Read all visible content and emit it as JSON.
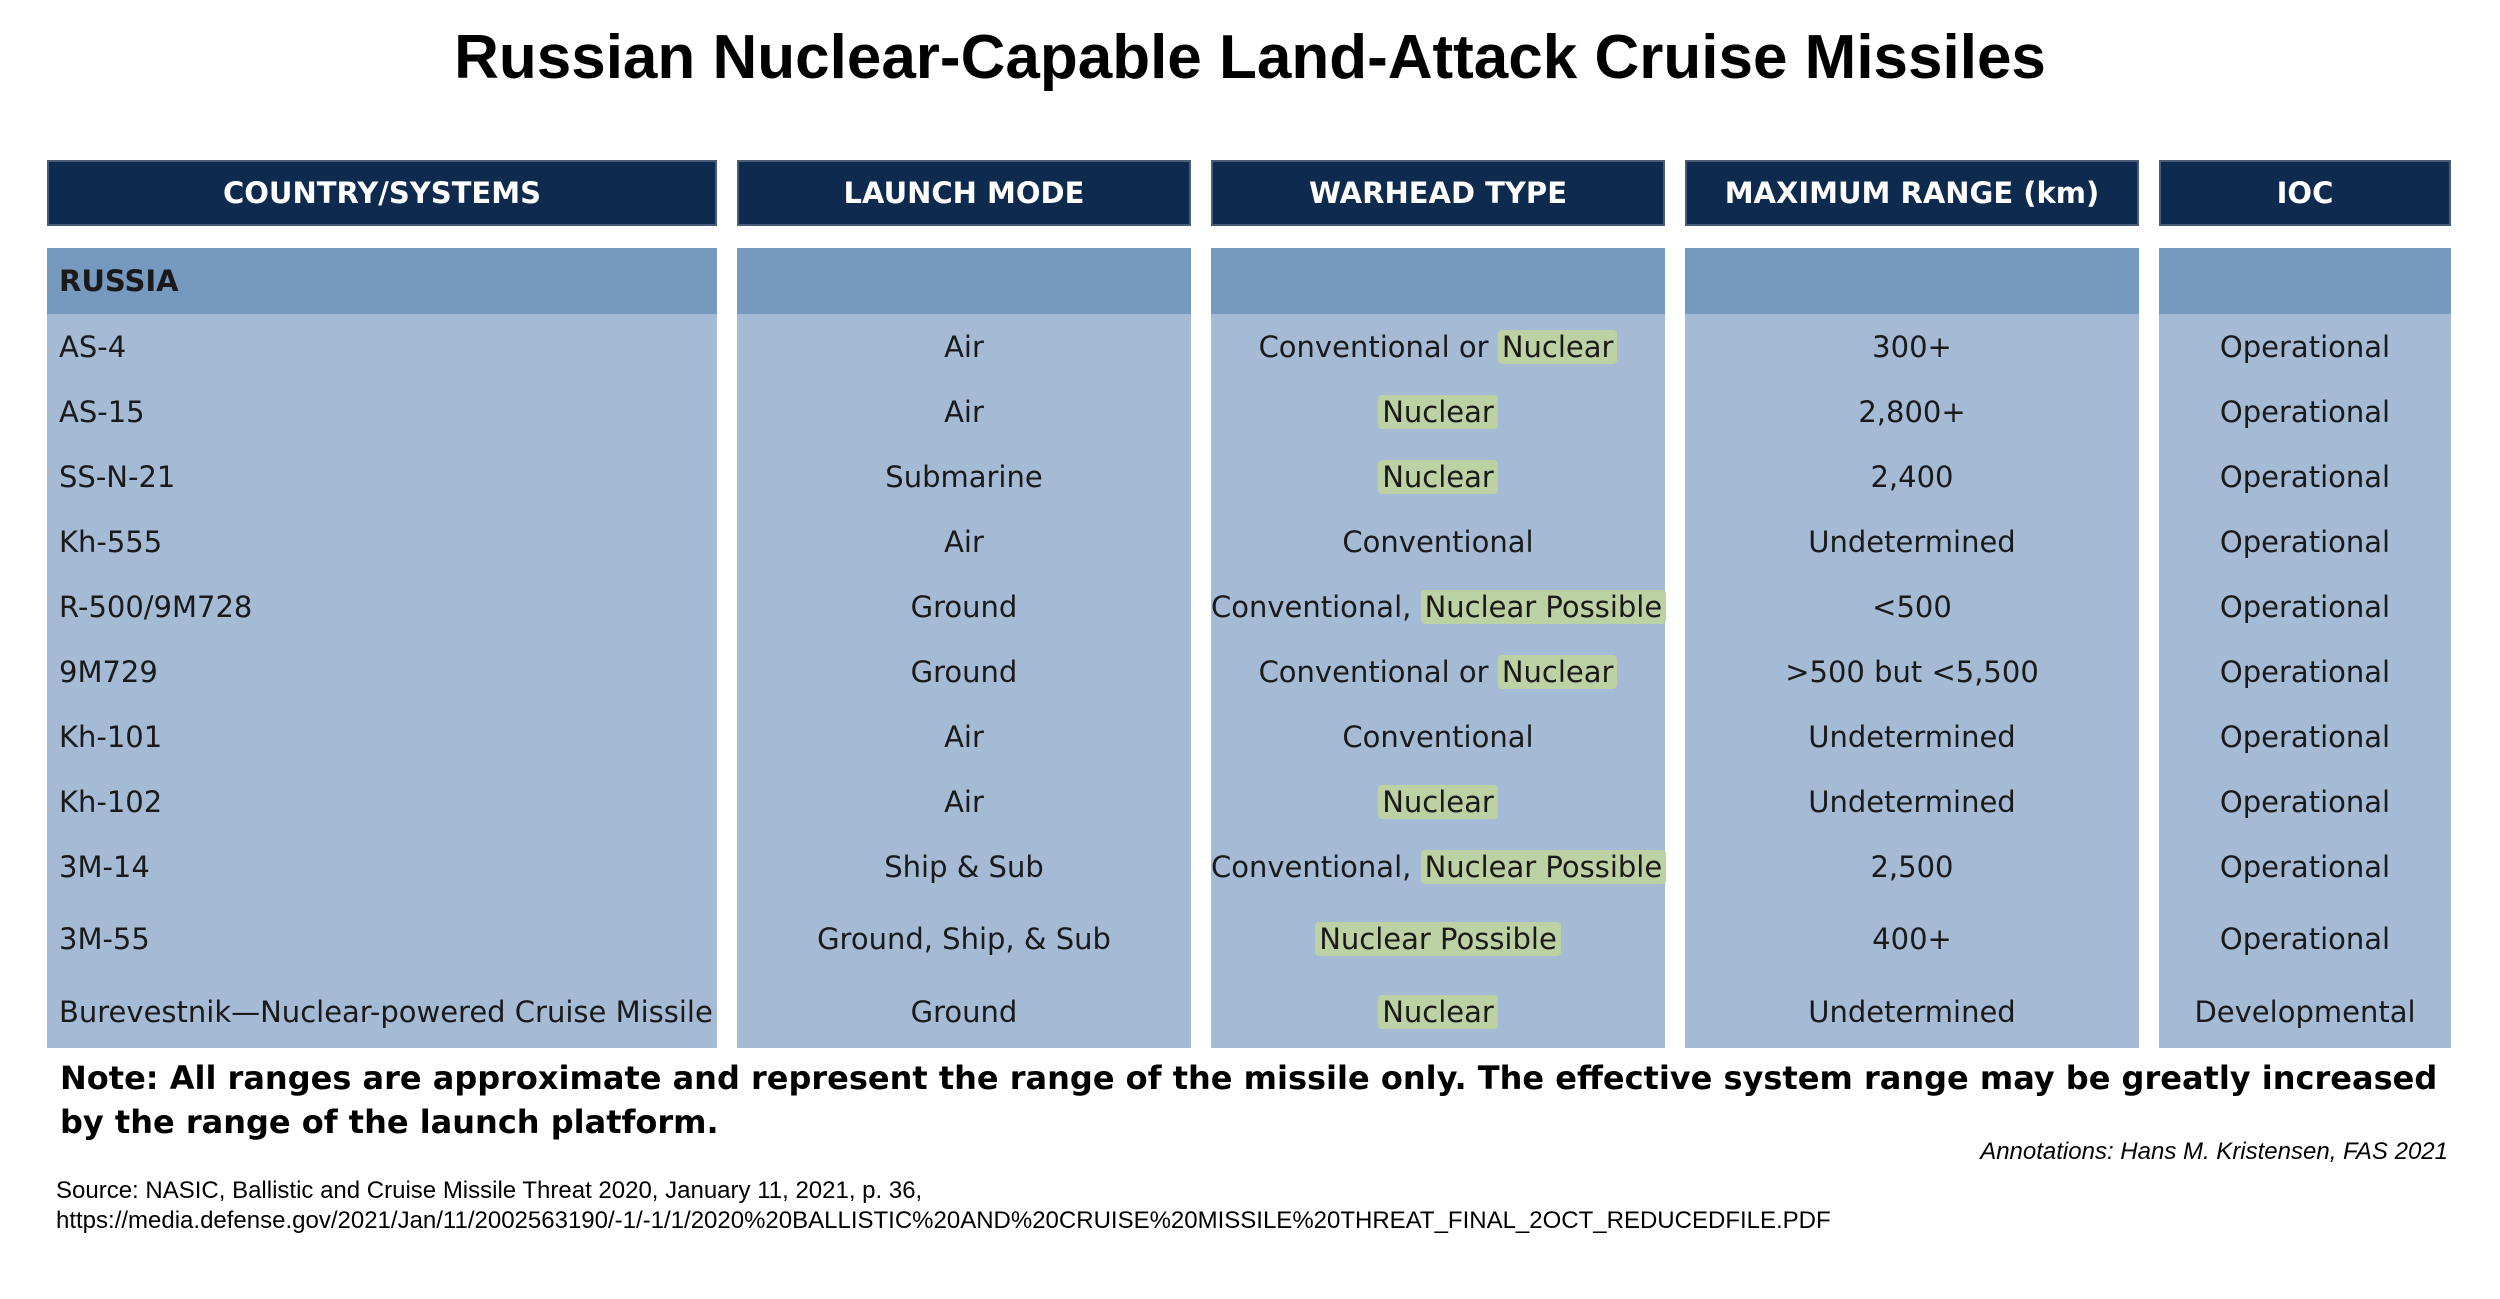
{
  "title": "Russian Nuclear-Capable Land-Attack Cruise Missiles",
  "headers": {
    "systems": "COUNTRY/SYSTEMS",
    "launch": "LAUNCH MODE",
    "warhead": "WARHEAD TYPE",
    "range": "MAXIMUM RANGE (km)",
    "ioc": "IOC"
  },
  "group_label": "RUSSIA",
  "rows": [
    {
      "system": "AS-4",
      "launch": "Air",
      "warhead_plain": "Conventional or ",
      "warhead_hl": "Nuclear",
      "range": "300+",
      "ioc": "Operational"
    },
    {
      "system": "AS-15",
      "launch": "Air",
      "warhead_plain": "",
      "warhead_hl": "Nuclear",
      "range": "2,800+",
      "ioc": "Operational"
    },
    {
      "system": "SS-N-21",
      "launch": "Submarine",
      "warhead_plain": "",
      "warhead_hl": "Nuclear",
      "range": "2,400",
      "ioc": "Operational"
    },
    {
      "system": "Kh-555",
      "launch": "Air",
      "warhead_plain": "Conventional",
      "warhead_hl": "",
      "range": "Undetermined",
      "ioc": "Operational"
    },
    {
      "system": "R-500/9M728",
      "launch": "Ground",
      "warhead_plain": "Conventional, ",
      "warhead_hl": "Nuclear Possible",
      "range": "<500",
      "ioc": "Operational"
    },
    {
      "system": "9M729",
      "launch": "Ground",
      "warhead_plain": "Conventional or ",
      "warhead_hl": "Nuclear",
      "range": ">500 but <5,500",
      "ioc": "Operational"
    },
    {
      "system": "Kh-101",
      "launch": "Air",
      "warhead_plain": "Conventional",
      "warhead_hl": "",
      "range": "Undetermined",
      "ioc": "Operational"
    },
    {
      "system": "Kh-102",
      "launch": "Air",
      "warhead_plain": "",
      "warhead_hl": "Nuclear",
      "range": "Undetermined",
      "ioc": "Operational"
    },
    {
      "system": "3M-14",
      "launch": "Ship & Sub",
      "warhead_plain": "Conventional, ",
      "warhead_hl": "Nuclear Possible",
      "range": "2,500",
      "ioc": "Operational"
    },
    {
      "system": "3M-55",
      "launch": "Ground, Ship, & Sub",
      "warhead_plain": "",
      "warhead_hl": "Nuclear Possible",
      "range": "400+",
      "ioc": "Operational"
    },
    {
      "system": "Burevestnik—Nuclear-powered Cruise Missile",
      "launch": "Ground",
      "warhead_plain": "",
      "warhead_hl": "Nuclear",
      "range": "Undetermined",
      "ioc": "Developmental"
    }
  ],
  "note": "Note: All ranges are approximate and represent the range of the missile only. The effective system range may be greatly increased by the range of the launch platform.",
  "annotations": "Annotations: Hans M. Kristensen, FAS 2021",
  "source_line1": "Source: NASIC, Ballistic and Cruise Missile Threat 2020, January 11, 2021, p. 36,",
  "source_line2": "https://media.defense.gov/2021/Jan/11/2002563190/-1/-1/1/2020%20BALLISTIC%20AND%20CRUISE%20MISSILE%20THREAT_FINAL_2OCT_REDUCEDFILE.PDF",
  "colors": {
    "header_bg": "#0f2a4f",
    "group_band": "#7699bf",
    "body_bg": "#a4bad5",
    "highlight": "#bcd1a4"
  }
}
